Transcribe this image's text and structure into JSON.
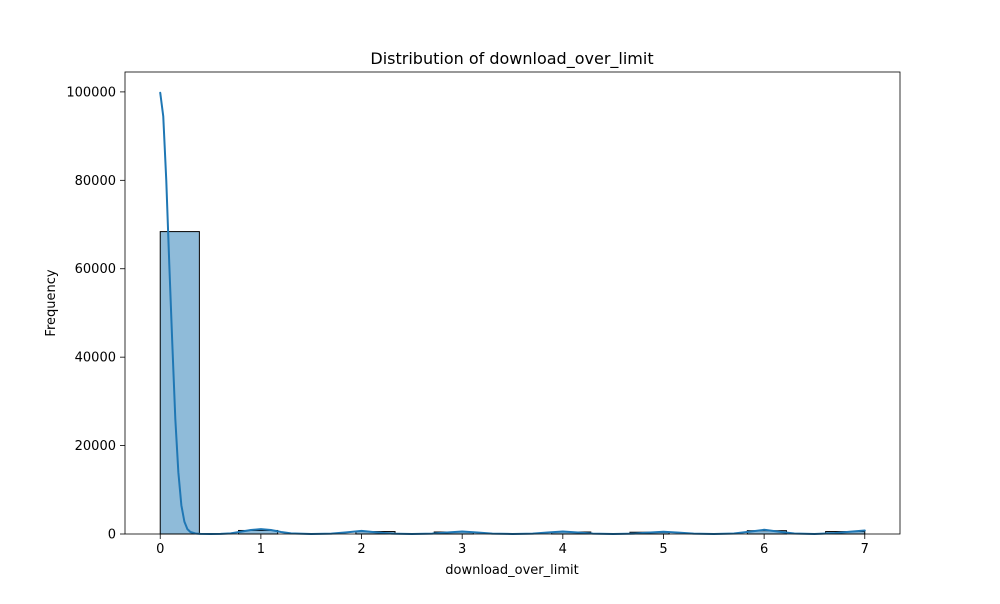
{
  "chart_data": {
    "type": "bar",
    "title": "Distribution of download_over_limit",
    "xlabel": "download_over_limit",
    "ylabel": "Frequency",
    "xlim": [
      -0.35,
      7.35
    ],
    "ylim": [
      0,
      104500
    ],
    "xticks": [
      0,
      1,
      2,
      3,
      4,
      5,
      6,
      7
    ],
    "yticks": [
      0,
      20000,
      40000,
      60000,
      80000,
      100000
    ],
    "bins": [
      {
        "x0": 0.0,
        "x1": 0.389,
        "value": 68400
      },
      {
        "x0": 0.389,
        "x1": 0.778,
        "value": 0
      },
      {
        "x0": 0.778,
        "x1": 1.167,
        "value": 800
      },
      {
        "x0": 1.167,
        "x1": 1.556,
        "value": 0
      },
      {
        "x0": 1.556,
        "x1": 1.944,
        "value": 0
      },
      {
        "x0": 1.944,
        "x1": 2.333,
        "value": 550
      },
      {
        "x0": 2.333,
        "x1": 2.722,
        "value": 0
      },
      {
        "x0": 2.722,
        "x1": 3.111,
        "value": 450
      },
      {
        "x0": 3.111,
        "x1": 3.5,
        "value": 0
      },
      {
        "x0": 3.5,
        "x1": 3.889,
        "value": 0
      },
      {
        "x0": 3.889,
        "x1": 4.278,
        "value": 450
      },
      {
        "x0": 4.278,
        "x1": 4.667,
        "value": 0
      },
      {
        "x0": 4.667,
        "x1": 5.056,
        "value": 400
      },
      {
        "x0": 5.056,
        "x1": 5.444,
        "value": 0
      },
      {
        "x0": 5.444,
        "x1": 5.833,
        "value": 0
      },
      {
        "x0": 5.833,
        "x1": 6.222,
        "value": 750
      },
      {
        "x0": 6.222,
        "x1": 6.611,
        "value": 0
      },
      {
        "x0": 6.611,
        "x1": 7.0,
        "value": 550
      }
    ],
    "kde": {
      "x": [
        0,
        0.03,
        0.06,
        0.09,
        0.12,
        0.15,
        0.18,
        0.21,
        0.24,
        0.27,
        0.3,
        0.35,
        0.4,
        0.5,
        0.6,
        0.7,
        0.8,
        0.9,
        1.0,
        1.1,
        1.2,
        1.3,
        1.5,
        1.7,
        1.85,
        2.0,
        2.15,
        2.3,
        2.5,
        2.7,
        2.85,
        3.0,
        3.15,
        3.3,
        3.5,
        3.7,
        3.85,
        4.0,
        4.15,
        4.3,
        4.5,
        4.7,
        4.85,
        5.0,
        5.15,
        5.3,
        5.5,
        5.7,
        5.85,
        6.0,
        6.15,
        6.3,
        6.5,
        6.7,
        6.85,
        7.0
      ],
      "y": [
        99800,
        94500,
        80000,
        61000,
        43000,
        26000,
        14000,
        6500,
        2800,
        1100,
        450,
        120,
        30,
        5,
        30,
        150,
        500,
        900,
        1100,
        900,
        450,
        150,
        10,
        80,
        380,
        700,
        380,
        80,
        5,
        80,
        350,
        580,
        350,
        80,
        5,
        80,
        350,
        580,
        350,
        80,
        5,
        80,
        320,
        520,
        320,
        80,
        5,
        120,
        500,
        950,
        500,
        120,
        5,
        200,
        500,
        780
      ],
      "color": "#1f77b4"
    },
    "bar_color": "#1f77b4",
    "bar_alpha": 0.5,
    "edge_color": "#000000",
    "grid": false,
    "legend": "none"
  }
}
